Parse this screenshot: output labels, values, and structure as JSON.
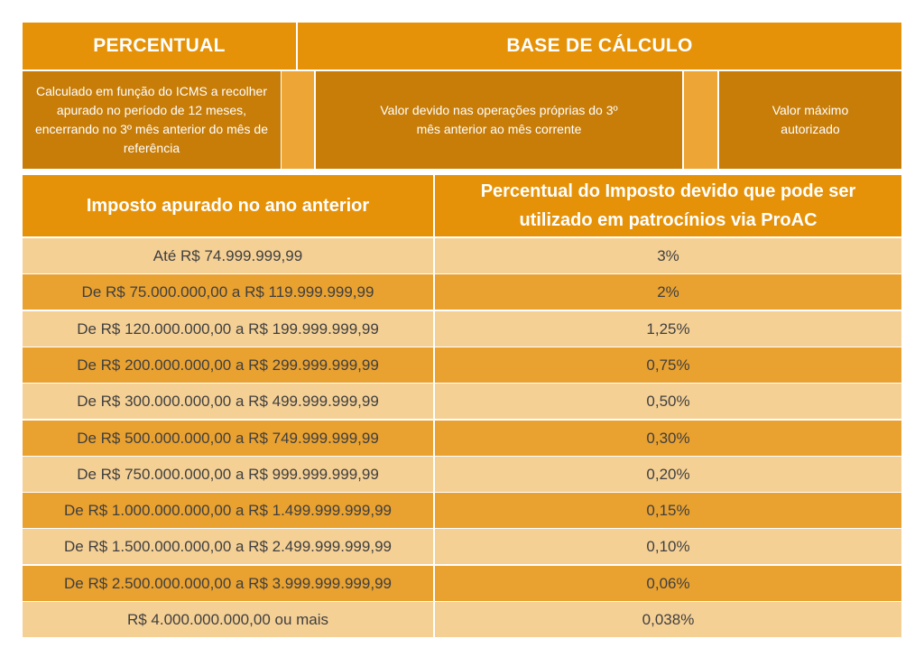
{
  "top": {
    "percentual_header": "PERCENTUAL",
    "base_header": "BASE DE CÁLCULO",
    "percentual_desc": "Calculado em função do ICMS a recolher apurado no período de 12 meses, encerrando no 3º mês anterior do mês de referência",
    "base_desc": "Valor devido nas operações próprias do 3º mês anterior ao mês corrente",
    "max_desc": "Valor máximo autorizado"
  },
  "table": {
    "headers": [
      "Imposto apurado no ano anterior",
      "Percentual do Imposto devido que pode ser utilizado em patrocínios via ProAC"
    ],
    "rows": [
      {
        "range": "Até R$ 74.999.999,99",
        "percent": "3%"
      },
      {
        "range": "De R$ 75.000.000,00 a R$ 119.999.999,99",
        "percent": "2%"
      },
      {
        "range": "De R$ 120.000.000,00 a R$ 199.999.999,99",
        "percent": "1,25%"
      },
      {
        "range": "De R$ 200.000.000,00 a R$ 299.999.999,99",
        "percent": "0,75%"
      },
      {
        "range": "De R$ 300.000.000,00 a R$ 499.999.999,99",
        "percent": "0,50%"
      },
      {
        "range": "De R$ 500.000.000,00 a R$ 749.999.999,99",
        "percent": "0,30%"
      },
      {
        "range": "De R$ 750.000.000,00 a R$ 999.999.999,99",
        "percent": "0,20%"
      },
      {
        "range": "De R$ 1.000.000.000,00 a R$ 1.499.999.999,99",
        "percent": "0,15%"
      },
      {
        "range": "De R$ 1.500.000.000,00 a R$ 2.499.999.999,99",
        "percent": "0,10%"
      },
      {
        "range": "De R$ 2.500.000.000,00 a R$ 3.999.999.999,99",
        "percent": "0,06%"
      },
      {
        "range": "R$ 4.000.000.000,00 ou mais",
        "percent": "0,038%"
      }
    ]
  },
  "colors": {
    "header_orange": "#e69208",
    "subheader_dark": "#c77d08",
    "row_light": "#f5d095",
    "row_dark": "#e9a130",
    "text_gray": "#3f3f3f"
  }
}
